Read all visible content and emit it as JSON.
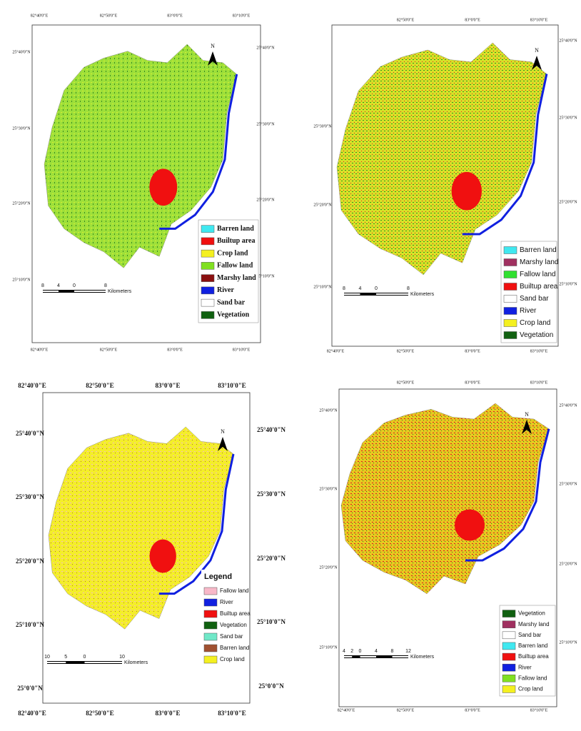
{
  "panels": [
    {
      "top_ticks": [
        "82°40'0\"E",
        "82°50'0\"E",
        "83°0'0\"E",
        "83°10'0\"E"
      ],
      "bottom_ticks": [
        "82°40'0\"E",
        "82°50'0\"E",
        "83°0'0\"E",
        "83°10'0\"E"
      ],
      "left_ticks": [
        "25°40'0\"N",
        "25°30'0\"N",
        "25°20'0\"N",
        "25°10'0\"N"
      ],
      "right_ticks": [
        "25°40'0\"N",
        "25°30'0\"N",
        "25°20'0\"N",
        "25°10'0\"N"
      ],
      "north": "N",
      "legend": [
        {
          "label": "Barren land",
          "color": "#40e8f0"
        },
        {
          "label": "Builtup area",
          "color": "#f01010"
        },
        {
          "label": "Crop land",
          "color": "#f4f020"
        },
        {
          "label": "Fallow land",
          "color": "#80e020"
        },
        {
          "label": "Marshy land",
          "color": "#8a1010"
        },
        {
          "label": "River",
          "color": "#1020e0"
        },
        {
          "label": "Sand bar",
          "color": "#ffffff"
        },
        {
          "label": "Vegetation",
          "color": "#106010"
        }
      ],
      "scale_labels": [
        "8",
        "4",
        "0",
        "8"
      ],
      "scale_unit": "Kilometers"
    },
    {
      "top_ticks": [
        "82°50'0\"E",
        "83°0'0\"E",
        "83°10'0\"E"
      ],
      "bottom_ticks": [
        "82°40'0\"E",
        "82°50'0\"E",
        "83°0'0\"E",
        "83°10'0\"E"
      ],
      "left_ticks": [
        "25°30'0\"N",
        "25°20'0\"N",
        "25°10'0\"N"
      ],
      "right_ticks": [
        "25°40'0\"N",
        "25°30'0\"N",
        "25°20'0\"N",
        "25°10'0\"N"
      ],
      "north": "N",
      "legend": [
        {
          "label": "Barren land",
          "color": "#40e8f0"
        },
        {
          "label": "Marshy land",
          "color": "#a03060"
        },
        {
          "label": "Fallow land",
          "color": "#30e030"
        },
        {
          "label": "Builtup area",
          "color": "#f01010"
        },
        {
          "label": "Sand bar",
          "color": "#ffffff"
        },
        {
          "label": "River",
          "color": "#1020e0"
        },
        {
          "label": "Crop land",
          "color": "#f4f020"
        },
        {
          "label": "Vegetation",
          "color": "#106010"
        }
      ],
      "scale_labels": [
        "8",
        "4",
        "0",
        "8"
      ],
      "scale_unit": "Kilometers"
    },
    {
      "top_ticks": [
        "82°40'0\"E",
        "82°50'0\"E",
        "83°0'0\"E",
        "83°10'0\"E"
      ],
      "bottom_ticks": [
        "82°40'0\"E",
        "82°50'0\"E",
        "83°0'0\"E",
        "83°10'0\"E"
      ],
      "left_ticks": [
        "25°40'0\"N",
        "25°30'0\"N",
        "25°20'0\"N",
        "25°10'0\"N",
        "25°0'0\"N"
      ],
      "right_ticks": [
        "25°40'0\"N",
        "25°30'0\"N",
        "25°20'0\"N",
        "25°10'0\"N",
        "25°0'0\"N"
      ],
      "north": "N",
      "legend_title": "Legend",
      "legend": [
        {
          "label": "Fallow land",
          "color": "#f8b8c8"
        },
        {
          "label": "River",
          "color": "#1020e0"
        },
        {
          "label": "Builtup area",
          "color": "#f01010"
        },
        {
          "label": "Vegetation",
          "color": "#106010"
        },
        {
          "label": "Sand bar",
          "color": "#70e8c8"
        },
        {
          "label": "Barren land",
          "color": "#a05030"
        },
        {
          "label": "Crop land",
          "color": "#f4f020"
        }
      ],
      "scale_labels": [
        "10",
        "5",
        "0",
        "10"
      ],
      "scale_unit": "Kilometers"
    },
    {
      "top_ticks": [
        "82°50'0\"E",
        "83°0'0\"E",
        "83°10'0\"E"
      ],
      "bottom_ticks": [
        "82°40'0\"E",
        "82°50'0\"E",
        "83°0'0\"E",
        "83°10'0\"E"
      ],
      "left_ticks": [
        "25°40'0\"N",
        "25°30'0\"N",
        "25°20'0\"N",
        "25°10'0\"N"
      ],
      "right_ticks": [
        "25°40'0\"N",
        "25°30'0\"N",
        "25°20'0\"N",
        "25°10'0\"N"
      ],
      "north": "N",
      "legend": [
        {
          "label": "Vegetation",
          "color": "#106010"
        },
        {
          "label": "Marshy land",
          "color": "#a03060"
        },
        {
          "label": "Sand bar",
          "color": "#ffffff"
        },
        {
          "label": "Barren land",
          "color": "#40e8f0"
        },
        {
          "label": "Builtup area",
          "color": "#f01010"
        },
        {
          "label": "River",
          "color": "#1020e0"
        },
        {
          "label": "Fallow land",
          "color": "#80e020"
        },
        {
          "label": "Crop land",
          "color": "#f4f020"
        }
      ],
      "scale_labels": [
        "4",
        "2",
        "0",
        "4",
        "8",
        "12"
      ],
      "scale_unit": "Kilometers"
    }
  ]
}
